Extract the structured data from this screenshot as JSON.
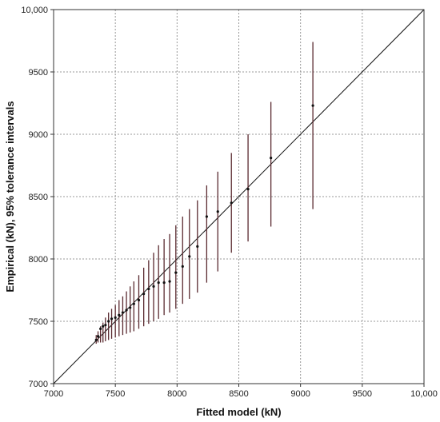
{
  "chart_data": {
    "type": "scatter",
    "title": "",
    "xlabel": "Fitted model (kN)",
    "ylabel": "Empirical (kN), 95% tolerance intervals",
    "xlim": [
      7000,
      10000
    ],
    "ylim": [
      7000,
      10000
    ],
    "xticks": [
      7000,
      7500,
      8000,
      8500,
      9000,
      9500,
      10000
    ],
    "yticks": [
      7000,
      7500,
      8000,
      8500,
      9000,
      9500,
      10000
    ],
    "xtick_labels": [
      "7000",
      "7500",
      "8000",
      "8500",
      "9000",
      "9500",
      "10,000"
    ],
    "ytick_labels": [
      "7000",
      "7500",
      "8000",
      "8500",
      "9000",
      "9500",
      "10,000"
    ],
    "grid": true,
    "reference_line": {
      "from": [
        7000,
        7000
      ],
      "to": [
        10000,
        10000
      ]
    },
    "colors": {
      "points": "#111111",
      "error_bars": "#5a2a30",
      "grid": "#999999",
      "axes": "#333333"
    },
    "points": [
      {
        "x": 7345,
        "y": 7350,
        "lo": 7320,
        "hi": 7390
      },
      {
        "x": 7360,
        "y": 7380,
        "lo": 7330,
        "hi": 7420
      },
      {
        "x": 7380,
        "y": 7440,
        "lo": 7330,
        "hi": 7460
      },
      {
        "x": 7400,
        "y": 7460,
        "lo": 7330,
        "hi": 7490
      },
      {
        "x": 7420,
        "y": 7470,
        "lo": 7340,
        "hi": 7530
      },
      {
        "x": 7445,
        "y": 7500,
        "lo": 7350,
        "hi": 7570
      },
      {
        "x": 7470,
        "y": 7520,
        "lo": 7360,
        "hi": 7600
      },
      {
        "x": 7500,
        "y": 7530,
        "lo": 7370,
        "hi": 7630
      },
      {
        "x": 7530,
        "y": 7550,
        "lo": 7380,
        "hi": 7670
      },
      {
        "x": 7560,
        "y": 7570,
        "lo": 7390,
        "hi": 7700
      },
      {
        "x": 7590,
        "y": 7590,
        "lo": 7400,
        "hi": 7740
      },
      {
        "x": 7620,
        "y": 7610,
        "lo": 7410,
        "hi": 7780
      },
      {
        "x": 7650,
        "y": 7640,
        "lo": 7420,
        "hi": 7820
      },
      {
        "x": 7690,
        "y": 7670,
        "lo": 7440,
        "hi": 7870
      },
      {
        "x": 7730,
        "y": 7720,
        "lo": 7460,
        "hi": 7930
      },
      {
        "x": 7770,
        "y": 7760,
        "lo": 7480,
        "hi": 7990
      },
      {
        "x": 7810,
        "y": 7780,
        "lo": 7500,
        "hi": 8050
      },
      {
        "x": 7850,
        "y": 7810,
        "lo": 7520,
        "hi": 8110
      },
      {
        "x": 7895,
        "y": 7810,
        "lo": 7550,
        "hi": 8160
      },
      {
        "x": 7940,
        "y": 7820,
        "lo": 7570,
        "hi": 8200
      },
      {
        "x": 7990,
        "y": 7890,
        "lo": 7600,
        "hi": 8270
      },
      {
        "x": 8045,
        "y": 7940,
        "lo": 7640,
        "hi": 8340
      },
      {
        "x": 8100,
        "y": 8020,
        "lo": 7680,
        "hi": 8400
      },
      {
        "x": 8165,
        "y": 8100,
        "lo": 7730,
        "hi": 8470
      },
      {
        "x": 8240,
        "y": 8340,
        "lo": 7810,
        "hi": 8590
      },
      {
        "x": 8330,
        "y": 8380,
        "lo": 7900,
        "hi": 8700
      },
      {
        "x": 8440,
        "y": 8450,
        "lo": 8050,
        "hi": 8850
      },
      {
        "x": 8575,
        "y": 8560,
        "lo": 8140,
        "hi": 9000
      },
      {
        "x": 8760,
        "y": 8810,
        "lo": 8260,
        "hi": 9260
      },
      {
        "x": 9100,
        "y": 9230,
        "lo": 8400,
        "hi": 9740
      }
    ]
  }
}
